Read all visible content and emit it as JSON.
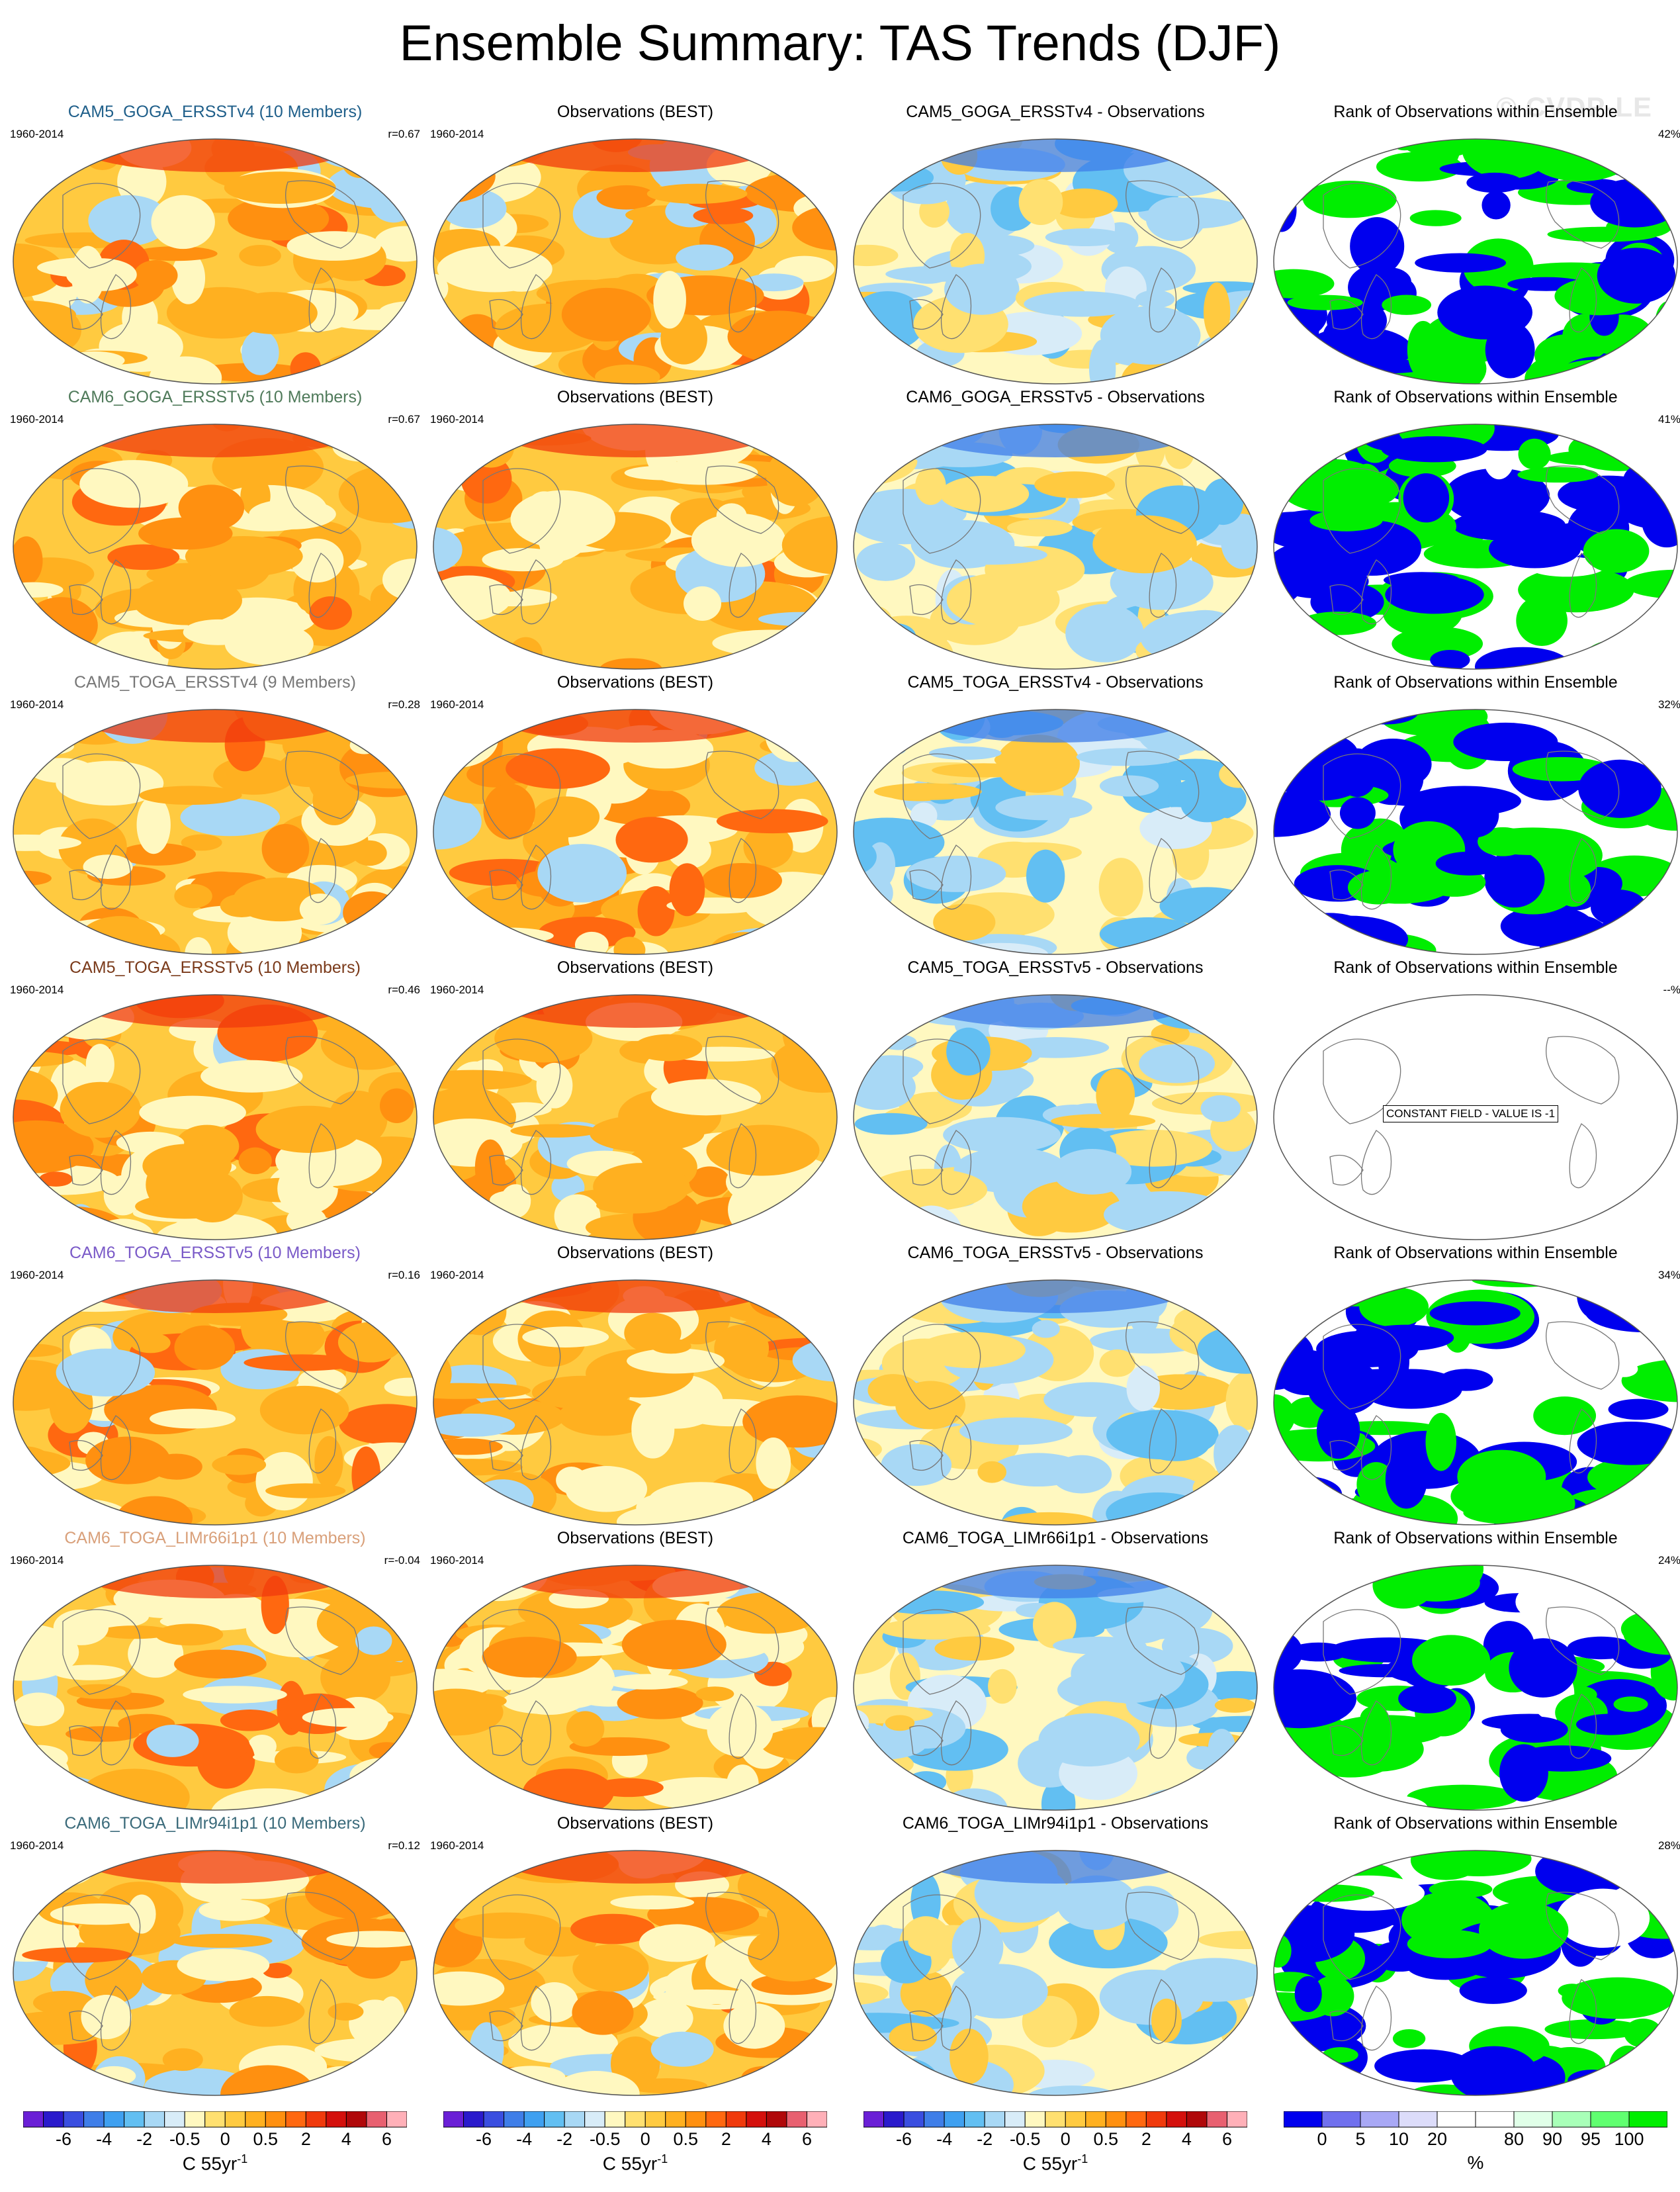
{
  "title": "Ensemble Summary: TAS Trends (DJF)",
  "watermark": "© CVDP-LE",
  "rows": [
    {
      "model": {
        "label": "CAM5_GOGA_ERSSTv4 (10 Members)",
        "color": "#1f5f8a",
        "period": "1960-2014",
        "r": "r=0.67"
      },
      "obs": {
        "label": "Observations (BEST)",
        "period": "1960-2014"
      },
      "diff": {
        "label": "CAM5_GOGA_ERSSTv4 - Observations"
      },
      "rank": {
        "label": "Rank of Observations within Ensemble",
        "pct": "42%"
      }
    },
    {
      "model": {
        "label": "CAM6_GOGA_ERSSTv5 (10 Members)",
        "color": "#4f7a5a",
        "period": "1960-2014",
        "r": "r=0.67"
      },
      "obs": {
        "label": "Observations (BEST)",
        "period": "1960-2014"
      },
      "diff": {
        "label": "CAM6_GOGA_ERSSTv5 - Observations"
      },
      "rank": {
        "label": "Rank of Observations within Ensemble",
        "pct": "41%"
      }
    },
    {
      "model": {
        "label": "CAM5_TOGA_ERSSTv4 (9 Members)",
        "color": "#777777",
        "period": "1960-2014",
        "r": "r=0.28"
      },
      "obs": {
        "label": "Observations (BEST)",
        "period": "1960-2014"
      },
      "diff": {
        "label": "CAM5_TOGA_ERSSTv4 - Observations"
      },
      "rank": {
        "label": "Rank of Observations within Ensemble",
        "pct": "32%"
      }
    },
    {
      "model": {
        "label": "CAM5_TOGA_ERSSTv5 (10 Members)",
        "color": "#7a3a1a",
        "period": "1960-2014",
        "r": "r=0.46"
      },
      "obs": {
        "label": "Observations (BEST)",
        "period": "1960-2014"
      },
      "diff": {
        "label": "CAM5_TOGA_ERSSTv5 - Observations"
      },
      "rank": {
        "label": "Rank of Observations within Ensemble",
        "pct": "--%",
        "constant": "CONSTANT FIELD - VALUE IS -1"
      }
    },
    {
      "model": {
        "label": "CAM6_TOGA_ERSSTv5 (10 Members)",
        "color": "#7a5ac8",
        "period": "1960-2014",
        "r": "r=0.16"
      },
      "obs": {
        "label": "Observations (BEST)",
        "period": "1960-2014"
      },
      "diff": {
        "label": "CAM6_TOGA_ERSSTv5 - Observations"
      },
      "rank": {
        "label": "Rank of Observations within Ensemble",
        "pct": "34%"
      }
    },
    {
      "model": {
        "label": "CAM6_TOGA_LIMr66i1p1 (10 Members)",
        "color": "#d9a07a",
        "period": "1960-2014",
        "r": "r=-0.04"
      },
      "obs": {
        "label": "Observations (BEST)",
        "period": "1960-2014"
      },
      "diff": {
        "label": "CAM6_TOGA_LIMr66i1p1 - Observations"
      },
      "rank": {
        "label": "Rank of Observations within Ensemble",
        "pct": "24%"
      }
    },
    {
      "model": {
        "label": "CAM6_TOGA_LIMr94i1p1 (10 Members)",
        "color": "#3a6a7a",
        "period": "1960-2014",
        "r": "r=0.12"
      },
      "obs": {
        "label": "Observations (BEST)",
        "period": "1960-2014"
      },
      "diff": {
        "label": "CAM6_TOGA_LIMr94i1p1 - Observations"
      },
      "rank": {
        "label": "Rank of Observations within Ensemble",
        "pct": "28%"
      }
    }
  ],
  "colorbar_trend": {
    "colors": [
      "#6a1fd6",
      "#2a1acc",
      "#3a4ee0",
      "#3f7ee8",
      "#3fa0f0",
      "#62bff2",
      "#a8d8f5",
      "#d8ecf8",
      "#fff8c0",
      "#ffe070",
      "#ffca40",
      "#ffb020",
      "#ff9010",
      "#ff6810",
      "#f03a0c",
      "#d4100c",
      "#b0080a",
      "#e86070",
      "#ffb0b8"
    ],
    "ticks": [
      "-6",
      "-4",
      "-2",
      "-0.5",
      "0",
      "0.5",
      "2",
      "4",
      "6"
    ],
    "unit": "C 55yr",
    "unit_exp": "-1"
  },
  "colorbar_rank": {
    "colors": [
      "#0000ee",
      "#7070ee",
      "#a8a8f5",
      "#dcdcfa",
      "#ffffff",
      "#ffffff",
      "#e0ffe8",
      "#a8ffb8",
      "#60ff70",
      "#00ee00"
    ],
    "ticks": [
      "0",
      "5",
      "10",
      "20",
      "80",
      "90",
      "95",
      "100"
    ],
    "unit": "%"
  }
}
